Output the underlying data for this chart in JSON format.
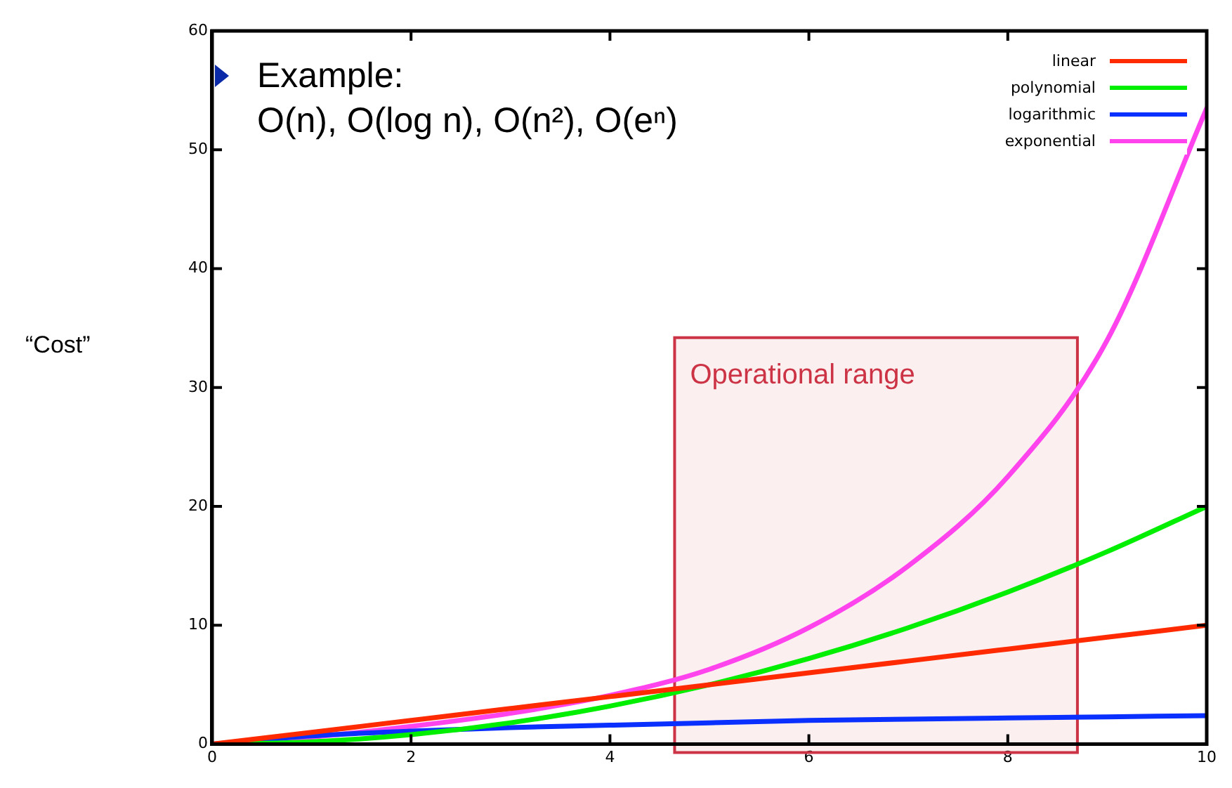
{
  "chart_data": {
    "type": "line",
    "ylabel": "“Cost”",
    "x": [
      0,
      1,
      2,
      3,
      4,
      5,
      6,
      7,
      8,
      9,
      10
    ],
    "xlim": [
      0,
      10
    ],
    "xticks": [
      0,
      2,
      4,
      6,
      8,
      10
    ],
    "ylim": [
      0,
      60
    ],
    "yticks": [
      0,
      10,
      20,
      30,
      40,
      50,
      60
    ],
    "grid": false,
    "legend": "top right",
    "marker": "none",
    "line_style": "solid",
    "series": [
      {
        "name": "linear",
        "color": "#ff2a00",
        "values": [
          0,
          1,
          2,
          3,
          4,
          5,
          6,
          7,
          8,
          9,
          10
        ]
      },
      {
        "name": "polynomial",
        "color": "#00ee00",
        "values": [
          0,
          0.2,
          0.8,
          1.8,
          3.2,
          5,
          7.2,
          9.8,
          12.8,
          16.2,
          20
        ]
      },
      {
        "name": "logarithmic",
        "color": "#0a30ff",
        "values": [
          0,
          0.7,
          1.1,
          1.4,
          1.6,
          1.8,
          2,
          2.1,
          2.2,
          2.3,
          2.4
        ]
      },
      {
        "name": "exponential",
        "color": "#ff44ee",
        "values": [
          0,
          0.6,
          1.5,
          2.6,
          4.1,
          6.3,
          9.8,
          15,
          22.5,
          34,
          53.5
        ]
      }
    ],
    "bands": [
      {
        "axis": "x",
        "from": 4.65,
        "to": 8.7,
        "label": "Operational range",
        "color": "#cc3344"
      }
    ],
    "annotations": [
      "Example:",
      "O(n), O(log n), O(n²), O(eⁿ)"
    ]
  }
}
